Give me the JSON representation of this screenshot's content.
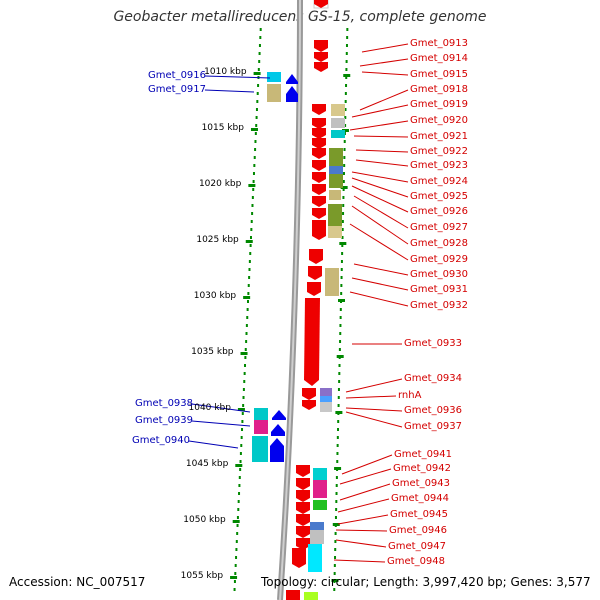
{
  "title": "Geobacter metallireducens GS-15, complete genome",
  "accession": "Accession: NC_007517",
  "topology": "Topology: circular; Length: 3,997,420 bp; Genes: 3,577",
  "scale_labels": [
    "1010 kbp",
    "1015 kbp",
    "1020 kbp",
    "1025 kbp",
    "1030 kbp",
    "1035 kbp",
    "1040 kbp",
    "1045 kbp",
    "1050 kbp",
    "1055 kbp"
  ],
  "left_labels": [
    "Gmet_0916",
    "Gmet_0917",
    "Gmet_0938",
    "Gmet_0939",
    "Gmet_0940"
  ],
  "right_labels": [
    "Gmet_0913",
    "Gmet_0914",
    "Gmet_0915",
    "Gmet_0918",
    "Gmet_0919",
    "Gmet_0920",
    "Gmet_0921",
    "Gmet_0922",
    "Gmet_0923",
    "Gmet_0924",
    "Gmet_0925",
    "Gmet_0926",
    "Gmet_0927",
    "Gmet_0928",
    "Gmet_0929",
    "Gmet_0930",
    "Gmet_0931",
    "Gmet_0932",
    "Gmet_0933",
    "Gmet_0934",
    "rnhA",
    "Gmet_0936",
    "Gmet_0937",
    "Gmet_0941",
    "Gmet_0942",
    "Gmet_0943",
    "Gmet_0944",
    "Gmet_0945",
    "Gmet_0946",
    "Gmet_0947",
    "Gmet_0948"
  ],
  "colors": {
    "forward_gene": "#ee0000",
    "reverse_gene": "#0000ee",
    "left_label": "#0000b4",
    "right_label": "#d40000",
    "backbone": "#888888",
    "tick": "#008800"
  }
}
